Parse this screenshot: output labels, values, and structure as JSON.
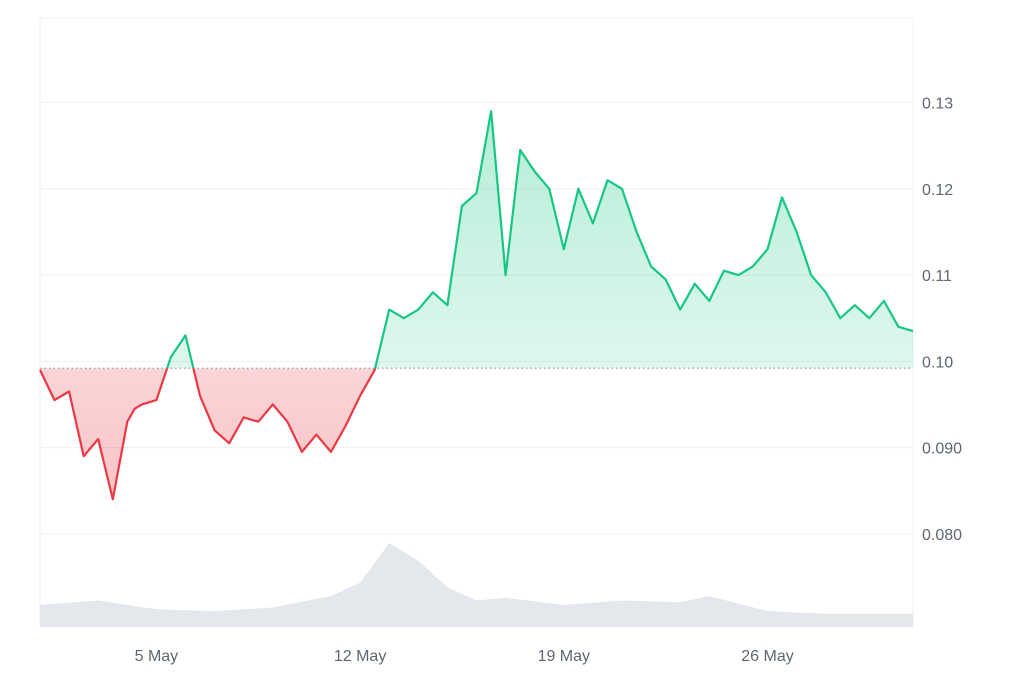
{
  "colors": {
    "up_line": "#16c784",
    "down_line": "#ea3943",
    "baseline": "#9aa0a6",
    "grid": "#eef0f3",
    "volume": "#e4e7eb"
  },
  "chart_data": {
    "type": "line",
    "title": "",
    "xlabel": "",
    "ylabel": "",
    "x_ticks": [
      "5 May",
      "12 May",
      "19 May",
      "26 May"
    ],
    "x_range": [
      "2024-05-01",
      "2024-05-31"
    ],
    "y_ticks": [
      "0.080",
      "0.090",
      "0.10",
      "0.11",
      "0.12",
      "0.13"
    ],
    "ylim": [
      0.0692,
      0.1398
    ],
    "y_axis_position": "right",
    "grid": true,
    "baseline_value": 0.0992,
    "series": [
      {
        "x": [
          "2024-05-01 00:00",
          "2024-05-01 12:00",
          "2024-05-02 00:00",
          "2024-05-02 12:00",
          "2024-05-03 00:00",
          "2024-05-03 12:00",
          "2024-05-04 00:00",
          "2024-05-04 06:00",
          "2024-05-04 12:00",
          "2024-05-05 00:00",
          "2024-05-05 12:00",
          "2024-05-06 00:00",
          "2024-05-06 12:00",
          "2024-05-07 00:00",
          "2024-05-07 12:00",
          "2024-05-08 00:00",
          "2024-05-08 12:00",
          "2024-05-09 00:00",
          "2024-05-09 12:00",
          "2024-05-10 00:00",
          "2024-05-10 12:00",
          "2024-05-11 00:00",
          "2024-05-11 12:00",
          "2024-05-12 00:00",
          "2024-05-12 12:00",
          "2024-05-13 00:00",
          "2024-05-13 12:00",
          "2024-05-14 00:00",
          "2024-05-14 12:00",
          "2024-05-15 00:00",
          "2024-05-15 12:00",
          "2024-05-16 00:00",
          "2024-05-16 12:00",
          "2024-05-17 00:00",
          "2024-05-17 12:00",
          "2024-05-18 00:00",
          "2024-05-18 12:00",
          "2024-05-19 00:00",
          "2024-05-19 12:00",
          "2024-05-20 00:00",
          "2024-05-20 12:00",
          "2024-05-21 00:00",
          "2024-05-21 12:00",
          "2024-05-22 00:00",
          "2024-05-22 12:00",
          "2024-05-23 00:00",
          "2024-05-23 12:00",
          "2024-05-24 00:00",
          "2024-05-24 12:00",
          "2024-05-25 00:00",
          "2024-05-25 12:00",
          "2024-05-26 00:00",
          "2024-05-26 12:00",
          "2024-05-27 00:00",
          "2024-05-27 12:00",
          "2024-05-28 00:00",
          "2024-05-28 12:00",
          "2024-05-29 00:00",
          "2024-05-29 12:00",
          "2024-05-30 00:00",
          "2024-05-30 12:00",
          "2024-05-31 00:00"
        ],
        "values": [
          0.099,
          0.0955,
          0.0965,
          0.089,
          0.091,
          0.084,
          0.093,
          0.0945,
          0.095,
          0.0955,
          0.1005,
          0.103,
          0.096,
          0.092,
          0.0905,
          0.0935,
          0.093,
          0.095,
          0.093,
          0.0895,
          0.0915,
          0.0895,
          0.0925,
          0.096,
          0.099,
          0.106,
          0.105,
          0.106,
          0.108,
          0.1065,
          0.118,
          0.1195,
          0.129,
          0.11,
          0.1245,
          0.122,
          0.12,
          0.113,
          0.12,
          0.116,
          0.121,
          0.12,
          0.115,
          0.111,
          0.1095,
          0.106,
          0.109,
          0.107,
          0.1105,
          0.11,
          0.111,
          0.113,
          0.119,
          0.115,
          0.11,
          0.108,
          0.105,
          0.1065,
          0.105,
          0.107,
          0.104,
          0.1035
        ]
      }
    ],
    "volume": {
      "x": [
        "2024-05-01",
        "2024-05-03",
        "2024-05-05",
        "2024-05-07",
        "2024-05-09",
        "2024-05-11",
        "2024-05-12",
        "2024-05-13",
        "2024-05-14",
        "2024-05-15",
        "2024-05-16",
        "2024-05-17",
        "2024-05-19",
        "2024-05-21",
        "2024-05-23",
        "2024-05-24",
        "2024-05-26",
        "2024-05-28",
        "2024-05-31"
      ],
      "values": [
        0.25,
        0.3,
        0.2,
        0.18,
        0.22,
        0.35,
        0.5,
        0.95,
        0.75,
        0.45,
        0.3,
        0.33,
        0.25,
        0.3,
        0.28,
        0.35,
        0.18,
        0.15,
        0.15
      ]
    }
  }
}
